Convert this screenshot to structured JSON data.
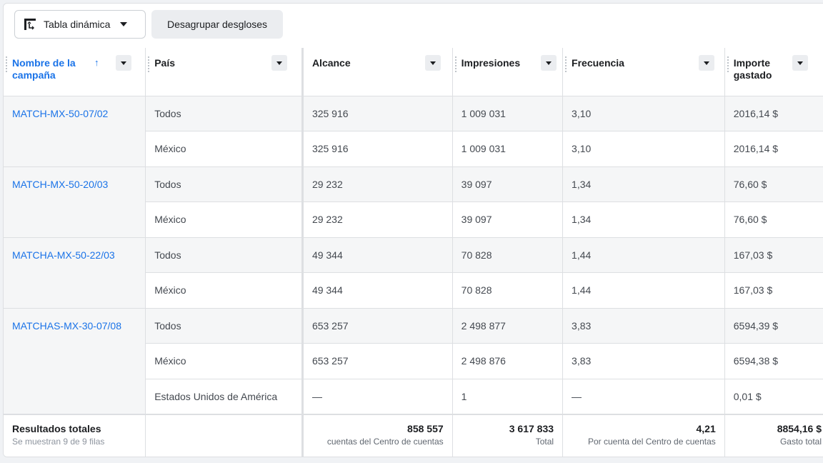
{
  "toolbar": {
    "pivot_label": "Tabla dinámica",
    "ungroup_label": "Desagrupar desgloses"
  },
  "columns": [
    {
      "label": "Nombre de la campaña",
      "sort": "ascending"
    },
    {
      "label": "País"
    },
    {
      "label": "Alcance"
    },
    {
      "label": "Impresiones"
    },
    {
      "label": "Frecuencia"
    },
    {
      "label": "Importe gastado"
    }
  ],
  "rows": [
    {
      "campaign": "MATCH-MX-50-07/02",
      "country": "Todos",
      "reach": "325 916",
      "impressions": "1 009 031",
      "frequency": "3,10",
      "spent": "2016,14 $"
    },
    {
      "campaign": "",
      "country": "México",
      "reach": "325 916",
      "impressions": "1 009 031",
      "frequency": "3,10",
      "spent": "2016,14 $"
    },
    {
      "campaign": "MATCH-MX-50-20/03",
      "country": "Todos",
      "reach": "29 232",
      "impressions": "39 097",
      "frequency": "1,34",
      "spent": "76,60 $"
    },
    {
      "campaign": "",
      "country": "México",
      "reach": "29 232",
      "impressions": "39 097",
      "frequency": "1,34",
      "spent": "76,60 $"
    },
    {
      "campaign": "MATCHA-MX-50-22/03",
      "country": "Todos",
      "reach": "49 344",
      "impressions": "70 828",
      "frequency": "1,44",
      "spent": "167,03 $"
    },
    {
      "campaign": "",
      "country": "México",
      "reach": "49 344",
      "impressions": "70 828",
      "frequency": "1,44",
      "spent": "167,03 $"
    },
    {
      "campaign": "MATCHAS-MX-30-07/08",
      "country": "Todos",
      "reach": "653 257",
      "impressions": "2 498 877",
      "frequency": "3,83",
      "spent": "6594,39 $"
    },
    {
      "campaign": "",
      "country": "México",
      "reach": "653 257",
      "impressions": "2 498 876",
      "frequency": "3,83",
      "spent": "6594,38 $"
    },
    {
      "campaign": "",
      "country": "Estados Unidos de América",
      "reach": "—",
      "impressions": "1",
      "frequency": "—",
      "spent": "0,01 $"
    }
  ],
  "totals": {
    "title": "Resultados totales",
    "subtitle": "Se muestran 9 de 9 filas",
    "reach": "858 557",
    "reach_label": "cuentas del Centro de cuentas",
    "impressions": "3 617 833",
    "impressions_label": "Total",
    "frequency": "4,21",
    "frequency_label": "Por cuenta del Centro de cuentas",
    "spent": "8854,16 $",
    "spent_label": "Gasto total"
  },
  "colors": {
    "link": "#1a73e8",
    "row_alt": "#f5f6f7",
    "border": "#dddfe2"
  },
  "icons": {
    "pivot": "pivot-table-icon",
    "sort": "arrow-up-icon",
    "dropdown": "caret-down-icon"
  }
}
